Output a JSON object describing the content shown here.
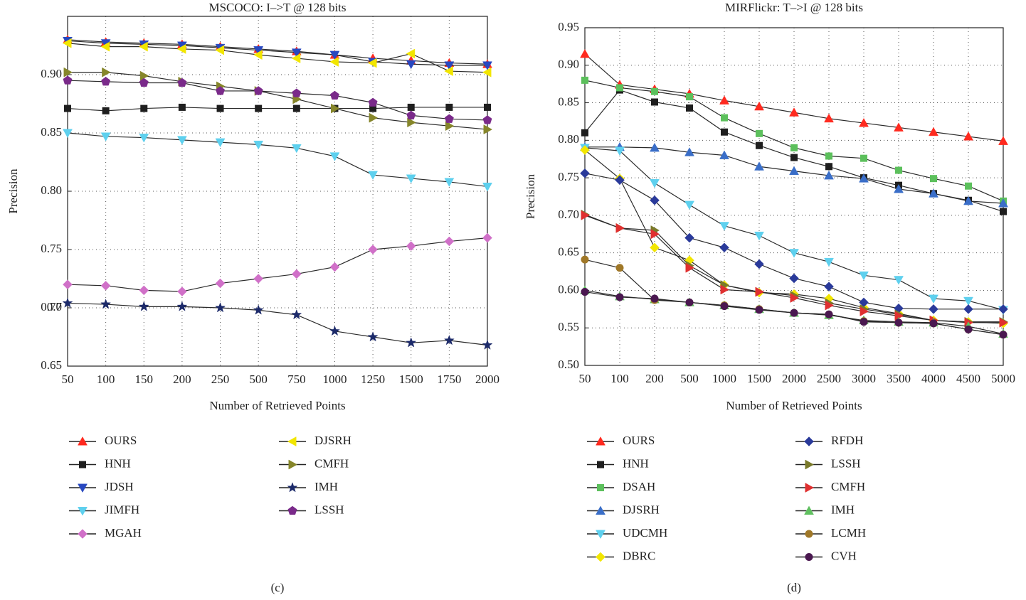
{
  "chart_data": [
    {
      "type": "line",
      "title": "MSCOCO: I–>T @ 128 bits",
      "xlabel": "Number of Retrieved Points",
      "ylabel": "Precision",
      "label": "(c)",
      "categories": [
        "50",
        "100",
        "150",
        "200",
        "250",
        "500",
        "750",
        "1000",
        "1250",
        "1500",
        "1750",
        "2000"
      ],
      "ylim": [
        0.65,
        0.95
      ],
      "yticks": [
        0.65,
        0.7,
        {
          "value": 0.7,
          "label": "0.70"
        },
        0.75,
        {
          "value": 0.8,
          "label": "0.80"
        },
        0.85,
        {
          "value": 0.9,
          "label": "0.90"
        }
      ],
      "grid": true,
      "series": [
        {
          "name": "OURS",
          "color": "#ff2a1f",
          "marker": "triangle-up",
          "values": [
            0.93,
            0.928,
            0.927,
            0.926,
            0.924,
            0.922,
            0.92,
            0.917,
            0.914,
            0.912,
            0.91,
            0.909
          ]
        },
        {
          "name": "HNH",
          "color": "#1e1e1e",
          "marker": "square",
          "values": [
            0.871,
            0.869,
            0.871,
            0.872,
            0.871,
            0.871,
            0.871,
            0.871,
            0.871,
            0.872,
            0.872,
            0.872
          ]
        },
        {
          "name": "JDSH",
          "color": "#2848c0",
          "marker": "triangle-down",
          "values": [
            0.929,
            0.927,
            0.926,
            0.925,
            0.923,
            0.921,
            0.919,
            0.917,
            0.911,
            0.909,
            0.908,
            0.908
          ]
        },
        {
          "name": "JIMFH",
          "color": "#5ed0ee",
          "marker": "triangle-down",
          "values": [
            0.85,
            0.847,
            0.846,
            0.844,
            0.842,
            0.84,
            0.837,
            0.83,
            0.814,
            0.811,
            0.808,
            0.804
          ]
        },
        {
          "name": "MGAH",
          "color": "#d070c8",
          "marker": "diamond",
          "values": [
            0.72,
            0.719,
            0.715,
            0.714,
            0.721,
            0.725,
            0.729,
            0.735,
            0.75,
            0.753,
            0.757,
            0.76
          ]
        },
        {
          "name": "DJSRH",
          "color": "#f2e600",
          "marker": "triangle-left",
          "values": [
            0.927,
            0.924,
            0.924,
            0.922,
            0.921,
            0.917,
            0.914,
            0.911,
            0.91,
            0.918,
            0.903,
            0.902
          ]
        },
        {
          "name": "CMFH",
          "color": "#86862a",
          "marker": "triangle-right",
          "values": [
            0.902,
            0.902,
            0.899,
            0.894,
            0.89,
            0.886,
            0.879,
            0.871,
            0.863,
            0.859,
            0.856,
            0.853
          ]
        },
        {
          "name": "IMH",
          "color": "#1c2a6a",
          "marker": "star",
          "values": [
            0.704,
            0.703,
            0.701,
            0.701,
            0.7,
            0.698,
            0.694,
            0.68,
            0.675,
            0.67,
            0.672,
            0.668
          ]
        },
        {
          "name": "LSSH",
          "color": "#7a2a8a",
          "marker": "pentagon",
          "values": [
            0.895,
            0.894,
            0.893,
            0.893,
            0.886,
            0.886,
            0.884,
            0.882,
            0.876,
            0.865,
            0.862,
            0.861
          ]
        }
      ]
    },
    {
      "type": "line",
      "title": "MIRFlickr: T–>I @ 128 bits",
      "xlabel": "Number of Retrieved Points",
      "ylabel": "Precision",
      "label": "(d)",
      "categories": [
        "50",
        "100",
        "200",
        "500",
        "1000",
        "1500",
        "2000",
        "2500",
        "3000",
        "3500",
        "4000",
        "4500",
        "5000"
      ],
      "ylim": [
        0.5,
        0.95
      ],
      "yticks": [
        {
          "value": 0.5,
          "label": "0.50"
        },
        0.55,
        {
          "value": 0.6,
          "label": "0.60"
        },
        0.65,
        {
          "value": 0.7,
          "label": "0.70"
        },
        0.75,
        {
          "value": 0.8,
          "label": "0.80"
        },
        0.85,
        {
          "value": 0.9,
          "label": "0.90"
        },
        0.95
      ],
      "grid": true,
      "series": [
        {
          "name": "OURS",
          "color": "#ff2a1f",
          "marker": "triangle-up",
          "values": [
            0.915,
            0.874,
            0.868,
            0.862,
            0.853,
            0.845,
            0.837,
            0.829,
            0.823,
            0.817,
            0.811,
            0.805,
            0.799
          ]
        },
        {
          "name": "HNH",
          "color": "#1e1e1e",
          "marker": "square",
          "values": [
            0.81,
            0.867,
            0.851,
            0.843,
            0.811,
            0.793,
            0.777,
            0.765,
            0.75,
            0.74,
            0.729,
            0.72,
            0.705
          ]
        },
        {
          "name": "DSAH",
          "color": "#5cc05c",
          "marker": "square",
          "values": [
            0.88,
            0.87,
            0.865,
            0.858,
            0.83,
            0.809,
            0.79,
            0.779,
            0.776,
            0.76,
            0.749,
            0.739,
            0.719
          ]
        },
        {
          "name": "DJSRH",
          "color": "#3a6ec8",
          "marker": "triangle-up",
          "values": [
            0.791,
            0.791,
            0.79,
            0.784,
            0.78,
            0.765,
            0.759,
            0.753,
            0.749,
            0.735,
            0.729,
            0.719,
            0.716
          ]
        },
        {
          "name": "UDCMH",
          "color": "#5ed0ee",
          "marker": "triangle-down",
          "values": [
            0.79,
            0.786,
            0.743,
            0.714,
            0.686,
            0.673,
            0.65,
            0.638,
            0.62,
            0.614,
            0.589,
            0.586,
            0.574
          ]
        },
        {
          "name": "DBRC",
          "color": "#f2e600",
          "marker": "diamond",
          "values": [
            0.787,
            0.749,
            0.657,
            0.64,
            0.607,
            0.597,
            0.595,
            0.589,
            0.577,
            0.569,
            0.56,
            0.558,
            0.556
          ]
        },
        {
          "name": "RFDH",
          "color": "#2a3a9a",
          "marker": "diamond",
          "values": [
            0.756,
            0.747,
            0.72,
            0.67,
            0.657,
            0.635,
            0.616,
            0.605,
            0.584,
            0.576,
            0.575,
            0.575,
            0.575
          ]
        },
        {
          "name": "LSSH",
          "color": "#7a7a2a",
          "marker": "triangle-right",
          "values": [
            0.701,
            0.683,
            0.68,
            0.633,
            0.607,
            0.598,
            0.593,
            0.583,
            0.575,
            0.568,
            0.56,
            0.558,
            0.558
          ]
        },
        {
          "name": "CMFH",
          "color": "#e03030",
          "marker": "triangle-right",
          "values": [
            0.7,
            0.683,
            0.675,
            0.63,
            0.601,
            0.598,
            0.59,
            0.58,
            0.572,
            0.566,
            0.56,
            0.557,
            0.557
          ]
        },
        {
          "name": "IMH",
          "color": "#60c060",
          "marker": "triangle-up",
          "values": [
            0.6,
            0.592,
            0.588,
            0.584,
            0.58,
            0.575,
            0.57,
            0.567,
            0.56,
            0.558,
            0.557,
            0.552,
            0.542
          ]
        },
        {
          "name": "LCMH",
          "color": "#a07828",
          "marker": "circle",
          "values": [
            0.641,
            0.63,
            0.587,
            0.584,
            0.58,
            0.575,
            0.57,
            0.568,
            0.559,
            0.557,
            0.556,
            0.548,
            0.541
          ]
        },
        {
          "name": "CVH",
          "color": "#4a1850",
          "marker": "circle",
          "values": [
            0.598,
            0.591,
            0.589,
            0.584,
            0.579,
            0.574,
            0.57,
            0.568,
            0.558,
            0.557,
            0.556,
            0.548,
            0.541
          ]
        }
      ]
    }
  ]
}
